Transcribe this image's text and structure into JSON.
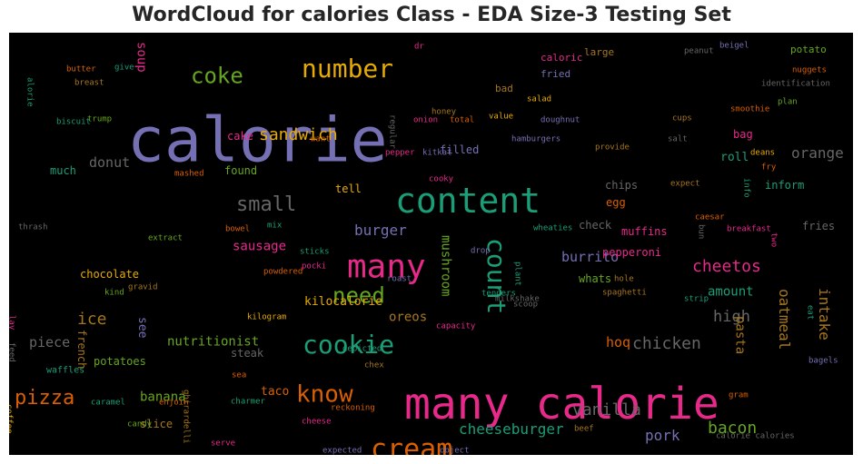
{
  "chart_data": {
    "type": "wordcloud",
    "title": "WordCloud for calories Class - EDA Size-3 Testing Set",
    "background": "#000000",
    "colormap": [
      "#7570b3",
      "#e7298a",
      "#1b9e77",
      "#d95f02",
      "#66a61e",
      "#e6ab02",
      "#a6761d",
      "#666666"
    ],
    "words": [
      {
        "text": "calorie",
        "color": "#7570b3"
      },
      {
        "text": "many calorie",
        "color": "#e7298a"
      },
      {
        "text": "content",
        "color": "#1b9e77"
      },
      {
        "text": "many",
        "color": "#e7298a"
      },
      {
        "text": "number",
        "color": "#e6ab02"
      },
      {
        "text": "cookie",
        "color": "#1b9e77"
      },
      {
        "text": "cream",
        "color": "#d95f02"
      },
      {
        "text": "count",
        "color": "#1b9e77"
      },
      {
        "text": "know",
        "color": "#d95f02"
      },
      {
        "text": "need",
        "color": "#66a61e"
      },
      {
        "text": "coke",
        "color": "#66a61e"
      },
      {
        "text": "small",
        "color": "#666666"
      },
      {
        "text": "pizza",
        "color": "#d95f02"
      },
      {
        "text": "sandwich",
        "color": "#e6ab02"
      },
      {
        "text": "vanilla",
        "color": "#666666"
      },
      {
        "text": "cheeseburger",
        "color": "#1b9e77"
      },
      {
        "text": "bacon",
        "color": "#66a61e"
      },
      {
        "text": "chicken",
        "color": "#666666"
      },
      {
        "text": "oatmeal",
        "color": "#a6761d"
      },
      {
        "text": "cheetos",
        "color": "#e7298a"
      },
      {
        "text": "burger",
        "color": "#7570b3"
      },
      {
        "text": "burrito",
        "color": "#7570b3"
      },
      {
        "text": "intake",
        "color": "#a6761d"
      },
      {
        "text": "mushroom",
        "color": "#66a61e"
      },
      {
        "text": "high",
        "color": "#666666"
      },
      {
        "text": "orange",
        "color": "#666666"
      },
      {
        "text": "pork",
        "color": "#7570b3"
      },
      {
        "text": "ice",
        "color": "#a6761d"
      },
      {
        "text": "donut",
        "color": "#666666"
      },
      {
        "text": "soup",
        "color": "#e7298a"
      },
      {
        "text": "piece",
        "color": "#666666"
      },
      {
        "text": "nutritionist",
        "color": "#66a61e"
      },
      {
        "text": "banana",
        "color": "#66a61e"
      },
      {
        "text": "amount",
        "color": "#1b9e77"
      },
      {
        "text": "pasta",
        "color": "#a6761d"
      },
      {
        "text": "sausage",
        "color": "#e7298a"
      },
      {
        "text": "hoq",
        "color": "#d95f02"
      },
      {
        "text": "oreos",
        "color": "#a6761d"
      },
      {
        "text": "kilocalorie",
        "color": "#e6ab02"
      },
      {
        "text": "chocolate",
        "color": "#e6ab02"
      },
      {
        "text": "muffins",
        "color": "#e7298a"
      },
      {
        "text": "pepperoni",
        "color": "#e7298a"
      },
      {
        "text": "potatoes",
        "color": "#66a61e"
      },
      {
        "text": "french",
        "color": "#a6761d"
      },
      {
        "text": "see",
        "color": "#7570b3"
      },
      {
        "text": "roll",
        "color": "#1b9e77"
      },
      {
        "text": "tell",
        "color": "#e6ab02"
      },
      {
        "text": "taco",
        "color": "#d95f02"
      },
      {
        "text": "slice",
        "color": "#a6761d"
      },
      {
        "text": "much",
        "color": "#1b9e77"
      },
      {
        "text": "found",
        "color": "#66a61e"
      },
      {
        "text": "filled",
        "color": "#7570b3"
      },
      {
        "text": "fries",
        "color": "#666666"
      },
      {
        "text": "inform",
        "color": "#1b9e77"
      },
      {
        "text": "chips",
        "color": "#666666"
      },
      {
        "text": "check",
        "color": "#666666"
      },
      {
        "text": "egg",
        "color": "#d95f02"
      },
      {
        "text": "whats",
        "color": "#66a61e"
      },
      {
        "text": "bag",
        "color": "#e7298a"
      },
      {
        "text": "steak",
        "color": "#666666"
      },
      {
        "text": "cake",
        "color": "#e7298a"
      },
      {
        "text": "bad",
        "color": "#a6761d"
      },
      {
        "text": "fried",
        "color": "#7570b3"
      },
      {
        "text": "large",
        "color": "#a6761d"
      },
      {
        "text": "caloric",
        "color": "#e7298a"
      },
      {
        "text": "potato",
        "color": "#66a61e"
      },
      {
        "text": "waffles",
        "color": "#1b9e77"
      },
      {
        "text": "candy",
        "color": "#66a61e"
      },
      {
        "text": "caramel",
        "color": "#1b9e77"
      },
      {
        "text": "enjoin",
        "color": "#d95f02"
      },
      {
        "text": "charmer",
        "color": "#1b9e77"
      },
      {
        "text": "sea",
        "color": "#d95f02"
      },
      {
        "text": "reckoning",
        "color": "#d95f02"
      },
      {
        "text": "cheese",
        "color": "#e7298a"
      },
      {
        "text": "serve",
        "color": "#e7298a"
      },
      {
        "text": "expected",
        "color": "#7570b3"
      },
      {
        "text": "object",
        "color": "#7570b3"
      },
      {
        "text": "beef",
        "color": "#a6761d"
      },
      {
        "text": "calorie calories",
        "color": "#666666"
      },
      {
        "text": "gram",
        "color": "#d95f02"
      },
      {
        "text": "bagels",
        "color": "#7570b3"
      },
      {
        "text": "eat",
        "color": "#1b9e77"
      },
      {
        "text": "two",
        "color": "#e7298a"
      },
      {
        "text": "ghirardelli",
        "color": "#a6761d"
      },
      {
        "text": "coffee",
        "color": "#e6ab02"
      },
      {
        "text": "feed",
        "color": "#666666"
      },
      {
        "text": "lay",
        "color": "#e7298a"
      },
      {
        "text": "depicted",
        "color": "#1b9e77"
      },
      {
        "text": "chex",
        "color": "#a6761d"
      },
      {
        "text": "kilogram",
        "color": "#e6ab02"
      },
      {
        "text": "milkshake",
        "color": "#666666"
      },
      {
        "text": "capacity",
        "color": "#e7298a"
      },
      {
        "text": "kind",
        "color": "#66a61e"
      },
      {
        "text": "gravid",
        "color": "#a6761d"
      },
      {
        "text": "pocki",
        "color": "#e7298a"
      },
      {
        "text": "powdered",
        "color": "#d95f02"
      },
      {
        "text": "sticks",
        "color": "#1b9e77"
      },
      {
        "text": "roast",
        "color": "#7570b3"
      },
      {
        "text": "drop",
        "color": "#7570b3"
      },
      {
        "text": "plant",
        "color": "#1b9e77"
      },
      {
        "text": "tenders",
        "color": "#1b9e77"
      },
      {
        "text": "scoop",
        "color": "#666666"
      },
      {
        "text": "spaghetti",
        "color": "#a6761d"
      },
      {
        "text": "hole",
        "color": "#a6761d"
      },
      {
        "text": "strip",
        "color": "#1b9e77"
      },
      {
        "text": "wheaties",
        "color": "#1b9e77"
      },
      {
        "text": "bun",
        "color": "#666666"
      },
      {
        "text": "caesar",
        "color": "#d95f02"
      },
      {
        "text": "breakfast",
        "color": "#e7298a"
      },
      {
        "text": "fry",
        "color": "#d95f02"
      },
      {
        "text": "info",
        "color": "#1b9e77"
      },
      {
        "text": "expect",
        "color": "#a6761d"
      },
      {
        "text": "deans",
        "color": "#e6ab02"
      },
      {
        "text": "salt",
        "color": "#666666"
      },
      {
        "text": "provide",
        "color": "#a6761d"
      },
      {
        "text": "cups",
        "color": "#a6761d"
      },
      {
        "text": "smoothie",
        "color": "#d95f02"
      },
      {
        "text": "plan",
        "color": "#66a61e"
      },
      {
        "text": "identification",
        "color": "#666666"
      },
      {
        "text": "nuggets",
        "color": "#d95f02"
      },
      {
        "text": "beigel",
        "color": "#7570b3"
      },
      {
        "text": "peanut",
        "color": "#666666"
      },
      {
        "text": "salad",
        "color": "#e6ab02"
      },
      {
        "text": "honey",
        "color": "#a6761d"
      },
      {
        "text": "value",
        "color": "#e6ab02"
      },
      {
        "text": "onion",
        "color": "#e7298a"
      },
      {
        "text": "total",
        "color": "#d95f02"
      },
      {
        "text": "doughnut",
        "color": "#7570b3"
      },
      {
        "text": "hamburgers",
        "color": "#7570b3"
      },
      {
        "text": "regular",
        "color": "#666666"
      },
      {
        "text": "pepper",
        "color": "#e7298a"
      },
      {
        "text": "kitkat",
        "color": "#7570b3"
      },
      {
        "text": "cooky",
        "color": "#e7298a"
      },
      {
        "text": "want",
        "color": "#d95f02"
      },
      {
        "text": "dr",
        "color": "#e7298a"
      },
      {
        "text": "butter",
        "color": "#d95f02"
      },
      {
        "text": "give",
        "color": "#1b9e77"
      },
      {
        "text": "breast",
        "color": "#a6761d"
      },
      {
        "text": "alorie",
        "color": "#1b9e77"
      },
      {
        "text": "biscuit",
        "color": "#1b9e77"
      },
      {
        "text": "trump",
        "color": "#66a61e"
      },
      {
        "text": "mashed",
        "color": "#d95f02"
      },
      {
        "text": "bowel",
        "color": "#d95f02"
      },
      {
        "text": "mix",
        "color": "#1b9e77"
      },
      {
        "text": "extract",
        "color": "#66a61e"
      },
      {
        "text": "thrash",
        "color": "#666666"
      }
    ]
  }
}
